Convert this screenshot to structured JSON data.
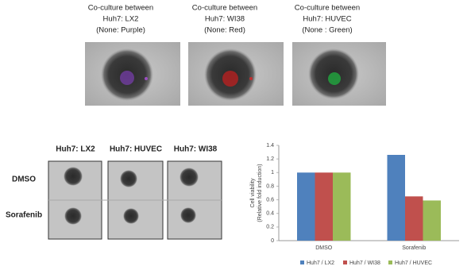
{
  "top_panels": [
    {
      "lines": [
        "Co-culture between",
        "Huh7: LX2",
        "(None: Purple)"
      ]
    },
    {
      "lines": [
        "Co-culture between",
        "Huh7: WI38",
        "(None: Red)"
      ]
    },
    {
      "lines": [
        "Co-culture between",
        "Huh7: HUVEC",
        "(None : Green)"
      ]
    }
  ],
  "grid_panels": {
    "columns": [
      "Huh7: LX2",
      "Huh7: HUVEC",
      "Huh7: WI38"
    ],
    "rows": [
      "DMSO",
      "Sorafenib"
    ]
  },
  "chart_data": {
    "type": "bar",
    "ylabel": [
      "Cell viability",
      "(Relative fold induction)"
    ],
    "categories": [
      "DMSO",
      "Sorafenib"
    ],
    "series": [
      {
        "name": "Huh7 / LX2",
        "color": "#4f81bd",
        "values": [
          1,
          1.26
        ]
      },
      {
        "name": "Huh7 / WI38",
        "color": "#c0504d",
        "values": [
          1,
          0.65
        ]
      },
      {
        "name": "Huh7 / HUVEC",
        "color": "#9bbb59",
        "values": [
          1,
          0.59
        ]
      }
    ],
    "ylim": [
      0,
      1.4
    ],
    "yticks": [
      0,
      0.2,
      0.4,
      0.6,
      0.8,
      1,
      1.2,
      1.4
    ],
    "grid": false,
    "legend": "bottom"
  }
}
